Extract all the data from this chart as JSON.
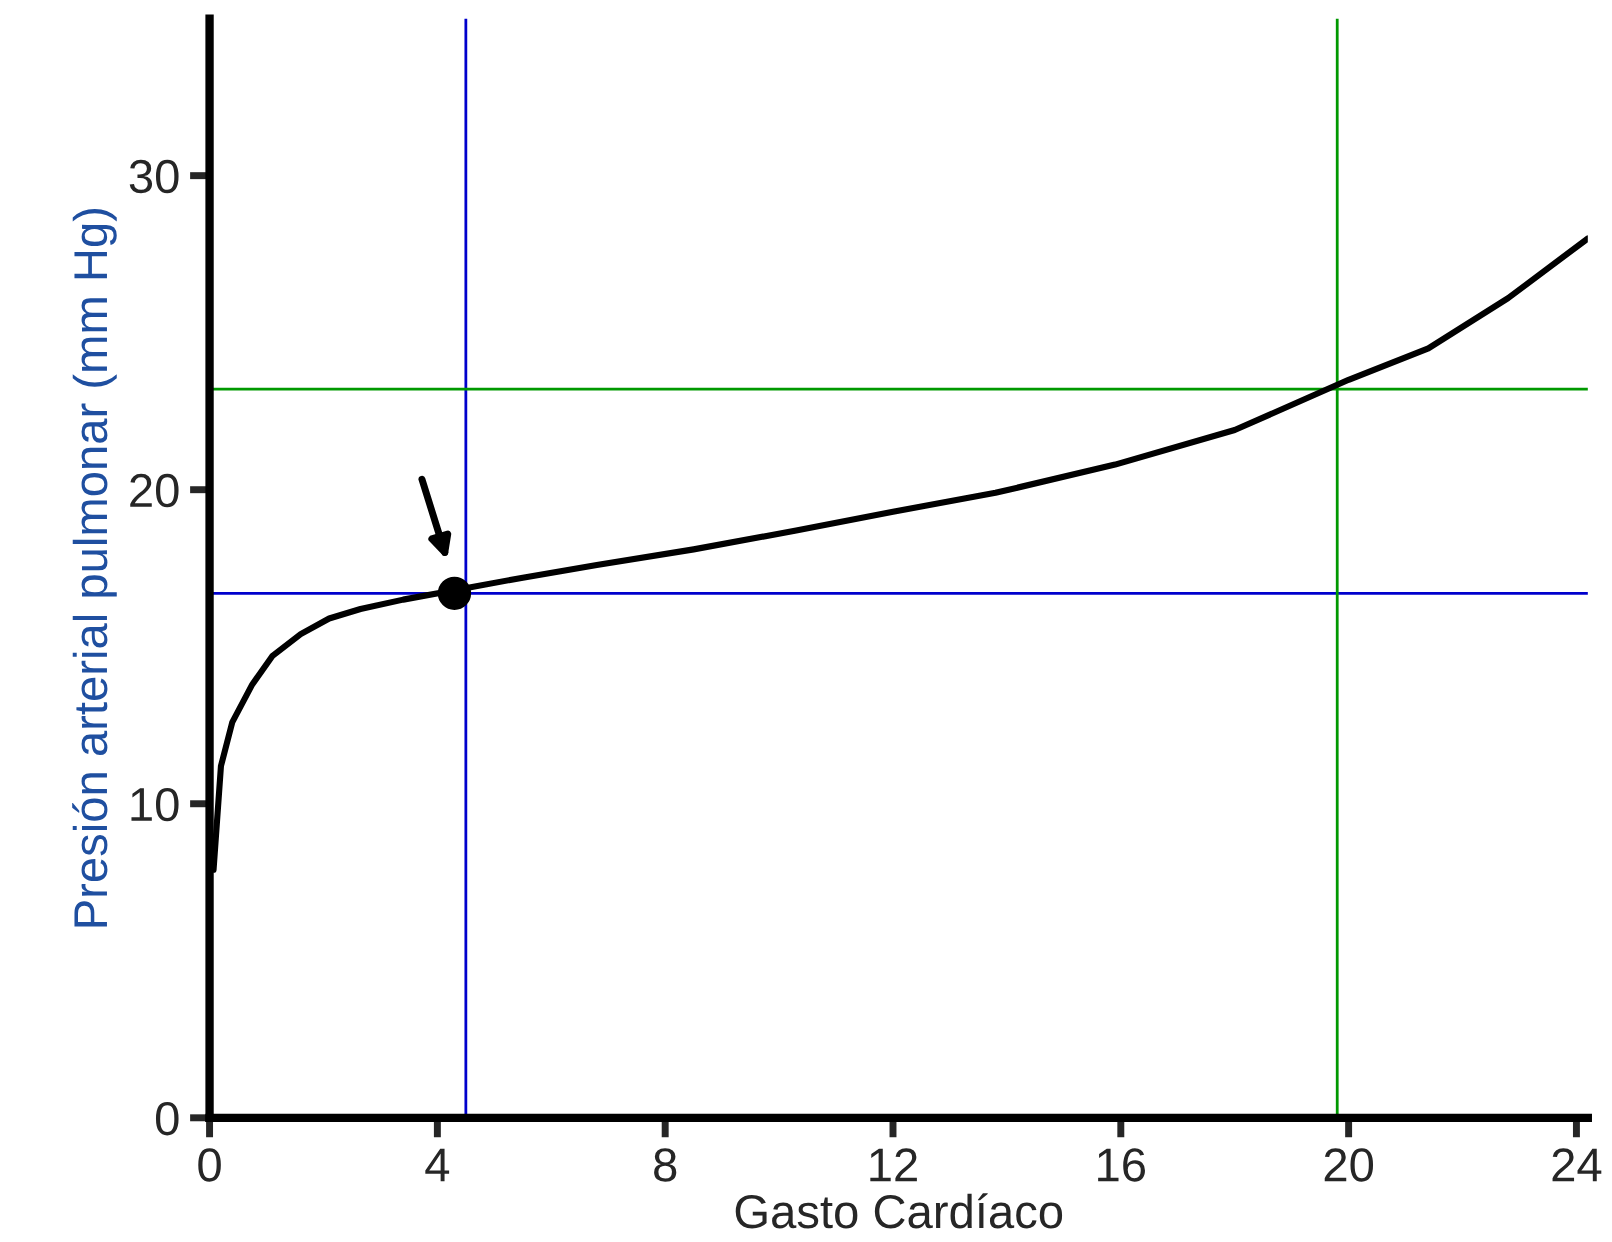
{
  "chart_data": {
    "type": "line",
    "xlabel": "Gasto Cardíaco",
    "ylabel": "Presión arterial pulmonar (mm Hg)",
    "xlim": [
      0,
      24.2
    ],
    "ylim": [
      0,
      35
    ],
    "xticks": [
      0,
      4,
      8,
      12,
      16,
      20,
      24
    ],
    "yticks": [
      0,
      10,
      20,
      30
    ],
    "grid": false,
    "legend": false,
    "series": [
      {
        "color": "#000000",
        "x": [
          0.07,
          0.2,
          0.4,
          0.75,
          1.1,
          1.6,
          2.1,
          2.65,
          3.4,
          4.3,
          5.5,
          6.8,
          8.5,
          10.3,
          12,
          13.8,
          15.9,
          18,
          20,
          21.4,
          22.8,
          24.2
        ],
        "values": [
          7.9,
          11.2,
          12.6,
          13.8,
          14.7,
          15.4,
          15.9,
          16.2,
          16.5,
          16.8,
          17.2,
          17.6,
          18.1,
          18.7,
          19.3,
          19.9,
          20.8,
          21.9,
          23.5,
          24.5,
          26.1,
          28
        ]
      },
      {
        "type": "scatter",
        "color": "#000000",
        "marker": "circle",
        "x": [
          4.3
        ],
        "values": [
          16.7
        ]
      }
    ],
    "ref_lines": [
      {
        "axis": "x",
        "value": 4.5,
        "color": "#0000cc"
      },
      {
        "axis": "y",
        "value": 16.7,
        "color": "#0000cc"
      },
      {
        "axis": "x",
        "value": 19.8,
        "color": "#009900"
      },
      {
        "axis": "y",
        "value": 23.2,
        "color": "#009900"
      }
    ]
  }
}
